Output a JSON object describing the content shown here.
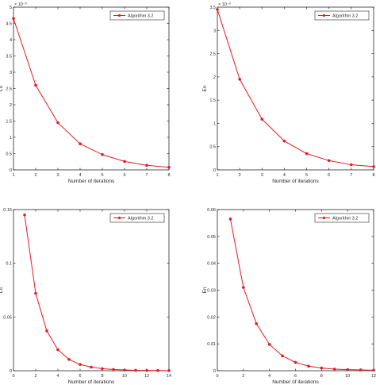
{
  "chart_data": [
    {
      "type": "line",
      "xlabel": "Number of iterations",
      "ylabel": "Lft",
      "exponent_label": "× 10⁻³",
      "xlim": [
        1,
        8
      ],
      "ylim": [
        0,
        0.005
      ],
      "xticks": [
        "1",
        "2",
        "3",
        "4",
        "5",
        "6",
        "7",
        "8"
      ],
      "yticks": [
        "0",
        "0.5",
        "1",
        "1.5",
        "2",
        "2.5",
        "3",
        "3.5",
        "4",
        "4.5",
        "5"
      ],
      "legend_position": "top-right",
      "grid": false,
      "series": [
        {
          "name": "Algorithm 3.2",
          "color": "#e8191e",
          "x": [
            1,
            2,
            3,
            4,
            5,
            6,
            7,
            8
          ],
          "y": [
            0.00465,
            0.0026,
            0.00145,
            0.0008,
            0.00047,
            0.00026,
            0.00014,
            8e-05
          ]
        }
      ]
    },
    {
      "type": "line",
      "xlabel": "Number of iterations",
      "ylabel": "En",
      "exponent_label": "× 10⁻³",
      "xlim": [
        1,
        8
      ],
      "ylim": [
        0,
        0.0035
      ],
      "xticks": [
        "1",
        "2",
        "3",
        "4",
        "5",
        "6",
        "7",
        "8"
      ],
      "yticks": [
        "0",
        "0.5",
        "1",
        "1.5",
        "2",
        "2.5",
        "3",
        "3.5"
      ],
      "legend_position": "top-right",
      "grid": false,
      "series": [
        {
          "name": "Algorithm 3.2",
          "color": "#e8191e",
          "x": [
            1,
            2,
            3,
            4,
            5,
            6,
            7,
            8
          ],
          "y": [
            0.00345,
            0.00195,
            0.00109,
            0.00062,
            0.00035,
            0.0002,
            0.00011,
            7e-05
          ]
        }
      ]
    },
    {
      "type": "line",
      "xlabel": "Number of iterations",
      "ylabel": "Lft",
      "xlim": [
        0,
        14
      ],
      "ylim": [
        0,
        0.15
      ],
      "xticks": [
        "0",
        "2",
        "4",
        "6",
        "8",
        "10",
        "12",
        "14"
      ],
      "yticks": [
        "0",
        "0.05",
        "0.1",
        "0.15"
      ],
      "legend_position": "top-right",
      "grid": false,
      "series": [
        {
          "name": "Algorithm 3.2",
          "color": "#e8191e",
          "x": [
            1,
            2,
            3,
            4,
            5,
            6,
            7,
            8,
            9,
            10,
            11,
            12,
            13,
            14
          ],
          "y": [
            0.145,
            0.072,
            0.037,
            0.0195,
            0.0105,
            0.0058,
            0.0033,
            0.0019,
            0.0011,
            0.0007,
            0.0004,
            0.0003,
            0.0002,
            0.0001
          ]
        }
      ]
    },
    {
      "type": "line",
      "xlabel": "Number of iterations",
      "ylabel": "En",
      "xlim": [
        0,
        12
      ],
      "ylim": [
        0,
        0.06
      ],
      "xticks": [
        "0",
        "2",
        "4",
        "6",
        "8",
        "10",
        "12"
      ],
      "yticks": [
        "0",
        "0.01",
        "0.02",
        "0.03",
        "0.04",
        "0.05",
        "0.06"
      ],
      "legend_position": "top-right",
      "grid": false,
      "series": [
        {
          "name": "Algorithm 3.2",
          "color": "#e8191e",
          "x": [
            1,
            2,
            3,
            4,
            5,
            6,
            7,
            8,
            9,
            10,
            11,
            12
          ],
          "y": [
            0.0565,
            0.031,
            0.0175,
            0.0098,
            0.0055,
            0.0031,
            0.0017,
            0.001,
            0.0006,
            0.0004,
            0.0003,
            0.0002
          ]
        }
      ]
    }
  ]
}
